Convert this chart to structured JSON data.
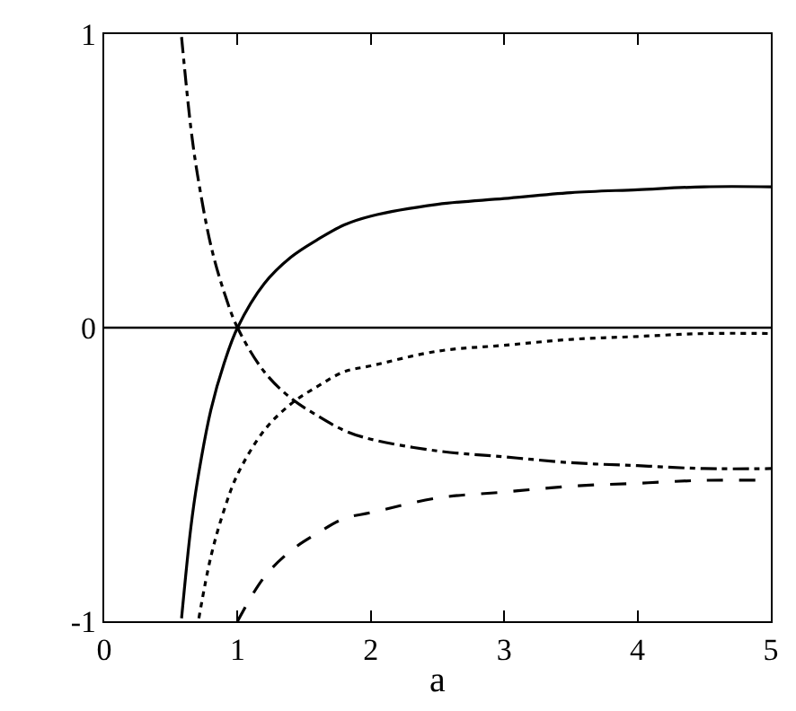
{
  "chart_data": {
    "type": "line",
    "xlabel": "a",
    "xlim": [
      0,
      5
    ],
    "ylim": [
      -1,
      1
    ],
    "xticks": [
      0,
      1,
      2,
      3,
      4,
      5
    ],
    "yticks": [
      -1,
      0,
      1
    ],
    "marker": "none",
    "ref_lines": [
      {
        "axis": "y",
        "value": 0,
        "color": "#000000",
        "line_style": "solid"
      }
    ],
    "series": [
      {
        "color": "#000000",
        "line_style": "solid",
        "x": [
          0.58,
          0.65,
          0.7,
          0.8,
          0.9,
          1,
          1.2,
          1.4,
          1.6,
          1.8,
          2,
          2.5,
          3,
          3.5,
          4,
          4.5,
          5
        ],
        "values": [
          -0.99,
          -0.68,
          -0.52,
          -0.28,
          -0.12,
          0,
          0.15,
          0.24,
          0.3,
          0.35,
          0.38,
          0.42,
          0.44,
          0.46,
          0.47,
          0.48,
          0.48
        ]
      },
      {
        "color": "#000000",
        "line_style": "dotted",
        "x": [
          0.71,
          0.8,
          0.9,
          1,
          1.2,
          1.4,
          1.6,
          1.8,
          2,
          2.5,
          3,
          3.5,
          4,
          4.5,
          5
        ],
        "values": [
          -0.99,
          -0.78,
          -0.62,
          -0.5,
          -0.35,
          -0.26,
          -0.2,
          -0.15,
          -0.13,
          -0.08,
          -0.06,
          -0.04,
          -0.03,
          -0.02,
          -0.02
        ]
      },
      {
        "color": "#000000",
        "line_style": "dashed",
        "x": [
          1,
          1.2,
          1.4,
          1.6,
          1.8,
          2,
          2.5,
          3,
          3.5,
          4,
          4.5,
          5
        ],
        "values": [
          -1,
          -0.85,
          -0.76,
          -0.7,
          -0.65,
          -0.63,
          -0.58,
          -0.56,
          -0.54,
          -0.53,
          -0.52,
          -0.52
        ]
      },
      {
        "color": "#000000",
        "line_style": "dashdot",
        "x": [
          0.58,
          0.65,
          0.7,
          0.8,
          0.9,
          1,
          1.2,
          1.4,
          1.6,
          1.8,
          2,
          2.5,
          3,
          3.5,
          4,
          4.5,
          5
        ],
        "values": [
          0.99,
          0.68,
          0.52,
          0.28,
          0.12,
          0,
          -0.15,
          -0.24,
          -0.3,
          -0.35,
          -0.38,
          -0.42,
          -0.44,
          -0.46,
          -0.47,
          -0.48,
          -0.48
        ]
      }
    ]
  }
}
